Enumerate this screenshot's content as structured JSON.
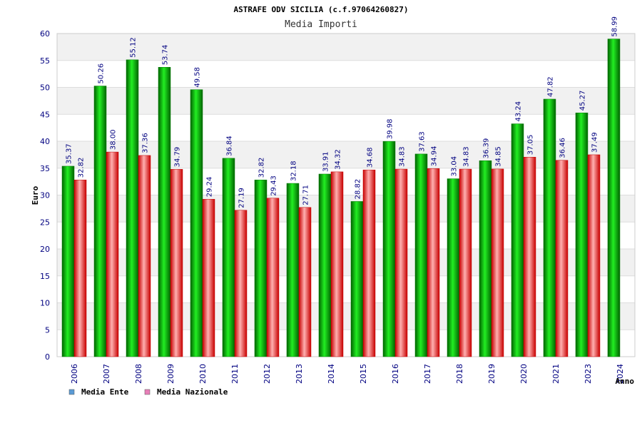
{
  "chart_data": {
    "type": "bar",
    "title": "ASTRAFE ODV SICILIA (c.f.97064260827)",
    "subtitle": "Media Importi",
    "ylabel": "Euro",
    "xlabel": "Anno",
    "ylim": [
      0,
      60
    ],
    "yticks": [
      0,
      5,
      10,
      15,
      20,
      25,
      30,
      35,
      40,
      45,
      50,
      55,
      60
    ],
    "grid": true,
    "legend_position": "bottom-left",
    "categories": [
      "2006",
      "2007",
      "2008",
      "2009",
      "2010",
      "2011",
      "2012",
      "2013",
      "2014",
      "2015",
      "2016",
      "2017",
      "2018",
      "2019",
      "2020",
      "2021",
      "2023",
      "2024"
    ],
    "series": [
      {
        "name": "Media Ente",
        "color": "#00c800",
        "legend_color": "#5b9bd5",
        "values": [
          35.37,
          50.26,
          55.12,
          53.74,
          49.58,
          36.84,
          32.82,
          32.18,
          33.91,
          28.82,
          39.98,
          37.63,
          33.04,
          36.39,
          43.24,
          47.82,
          45.27,
          58.99
        ],
        "labels": [
          "35.37",
          "50.26",
          "55.12",
          "53.74",
          "49.58",
          "36.84",
          "32.82",
          "32.18",
          "33.91",
          "28.82",
          "39.98",
          "37.63",
          "33.04",
          "36.39",
          "43.24",
          "47.82",
          "45.27",
          "58.99"
        ]
      },
      {
        "name": "Media Nazionale",
        "color": "#e81818",
        "legend_color": "#e87fb8",
        "values": [
          32.82,
          38.0,
          37.36,
          34.79,
          29.24,
          27.19,
          29.43,
          27.71,
          34.32,
          34.68,
          34.83,
          34.94,
          34.83,
          34.85,
          37.05,
          36.46,
          37.49,
          null
        ],
        "labels": [
          "32.82",
          "38.00",
          "37.36",
          "34.79",
          "29.24",
          "27.19",
          "29.43",
          "27.71",
          "34.32",
          "34.68",
          "34.83",
          "34.94",
          "34.83",
          "34.85",
          "37.05",
          "36.46",
          "37.49",
          ""
        ]
      }
    ]
  }
}
